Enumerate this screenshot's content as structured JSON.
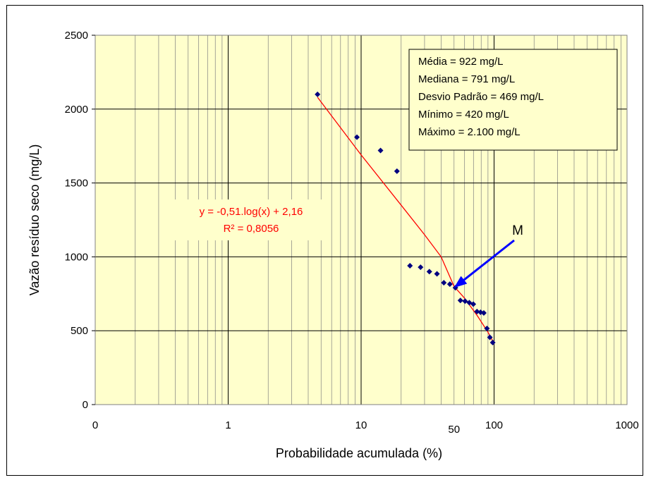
{
  "chart_data": {
    "type": "scatter",
    "title": "",
    "xlabel": "Probabilidade  acumulada (%)",
    "ylabel": "Vazão resíduo seco (mg/L)",
    "x_scale": "log",
    "x_tick_labels": [
      "0",
      "1",
      "10",
      "100",
      "1000"
    ],
    "x_tick_values": [
      0.1,
      1,
      10,
      100,
      1000
    ],
    "x_extra_label": {
      "text": "50",
      "value": 50
    },
    "xlim": [
      0.1,
      1000
    ],
    "ylim": [
      0,
      2500
    ],
    "y_ticks": [
      0,
      500,
      1000,
      1500,
      2000,
      2500
    ],
    "grid": true,
    "plot_background": "#ffffcc",
    "series": [
      {
        "color": "#000080",
        "marker": "diamond",
        "points": [
          {
            "x": 4.7,
            "y": 2100
          },
          {
            "x": 9.3,
            "y": 1810
          },
          {
            "x": 14.0,
            "y": 1720
          },
          {
            "x": 18.6,
            "y": 1580
          },
          {
            "x": 23.3,
            "y": 940
          },
          {
            "x": 28.0,
            "y": 930
          },
          {
            "x": 32.6,
            "y": 900
          },
          {
            "x": 37.2,
            "y": 885
          },
          {
            "x": 41.9,
            "y": 825
          },
          {
            "x": 46.5,
            "y": 815
          },
          {
            "x": 51.2,
            "y": 791
          },
          {
            "x": 55.8,
            "y": 705
          },
          {
            "x": 60.5,
            "y": 700
          },
          {
            "x": 65.1,
            "y": 690
          },
          {
            "x": 69.8,
            "y": 680
          },
          {
            "x": 74.4,
            "y": 630
          },
          {
            "x": 79.1,
            "y": 625
          },
          {
            "x": 83.7,
            "y": 620
          },
          {
            "x": 88.4,
            "y": 515
          },
          {
            "x": 93.0,
            "y": 455
          },
          {
            "x": 97.7,
            "y": 420
          }
        ]
      }
    ],
    "trendline": {
      "color": "#ff0000",
      "points": [
        {
          "x": 4.7,
          "y": 2080
        },
        {
          "x": 10,
          "y": 1690
        },
        {
          "x": 20,
          "y": 1350
        },
        {
          "x": 30,
          "y": 1150
        },
        {
          "x": 40,
          "y": 1000
        },
        {
          "x": 50,
          "y": 800
        },
        {
          "x": 60,
          "y": 720
        },
        {
          "x": 75,
          "y": 600
        },
        {
          "x": 90,
          "y": 490
        },
        {
          "x": 97.7,
          "y": 430
        }
      ]
    },
    "equation_text": "y = -0,51.log(x) + 2,16",
    "r2_text": "R² = 0,8056",
    "annotation": {
      "text": "M",
      "color": "#0000ff",
      "target": {
        "x": 50,
        "y": 791
      }
    },
    "stats_box": [
      "Média = 922 mg/L",
      "Mediana = 791 mg/L",
      "Desvio Padrão = 469 mg/L",
      "Mínimo = 420 mg/L",
      "Máximo = 2.100 mg/L"
    ]
  }
}
